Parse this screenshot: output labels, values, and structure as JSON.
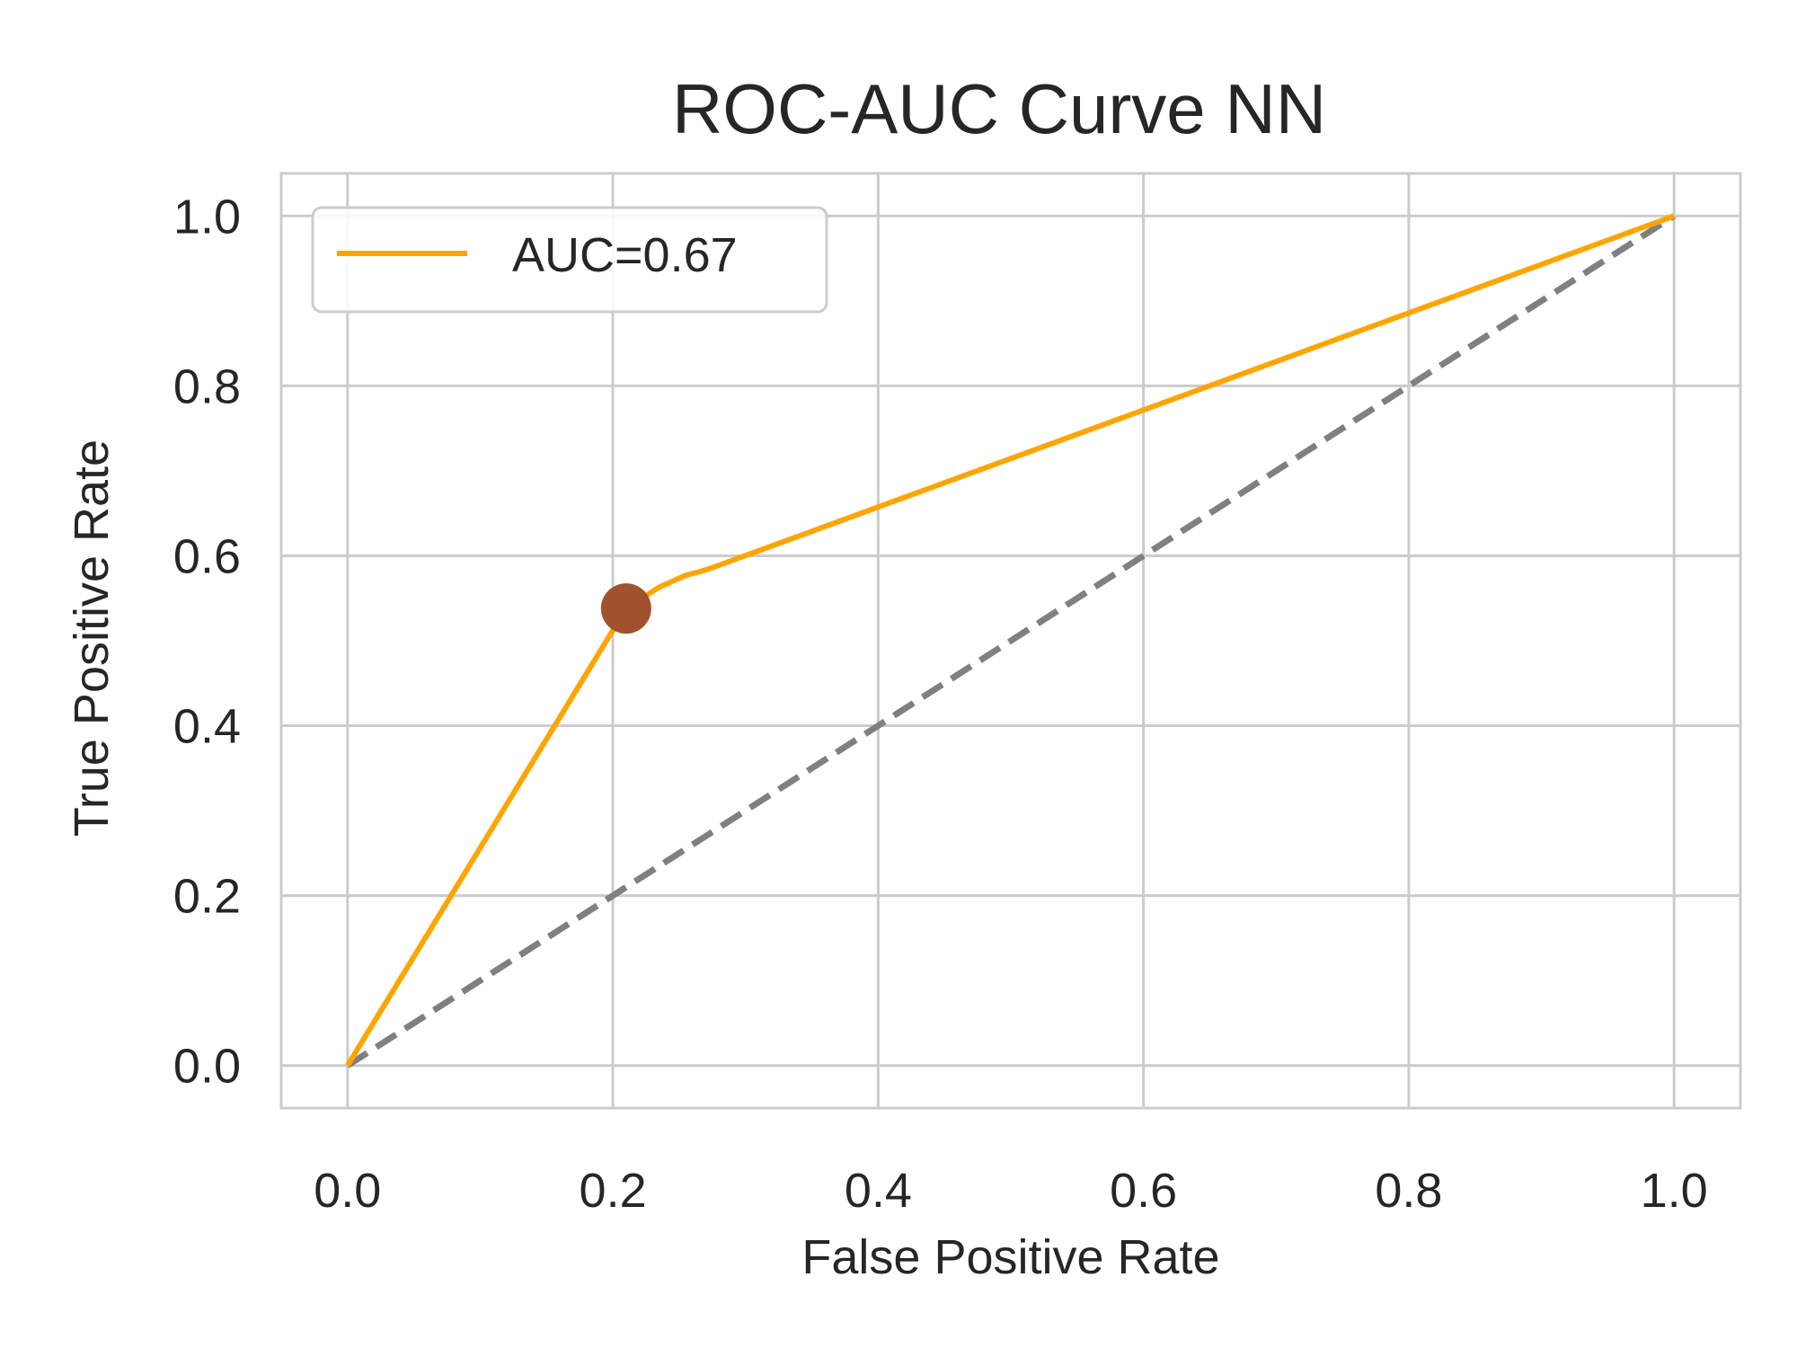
{
  "chart_data": {
    "type": "line",
    "title": "ROC-AUC Curve NN",
    "xlabel": "False Positive Rate",
    "ylabel": "True Positive Rate",
    "xlim": [
      -0.05,
      1.05
    ],
    "ylim": [
      -0.05,
      1.05
    ],
    "x_ticks": [
      0.0,
      0.2,
      0.4,
      0.6,
      0.8,
      1.0
    ],
    "y_ticks": [
      0.0,
      0.2,
      0.4,
      0.6,
      0.8,
      1.0
    ],
    "x_tick_labels": [
      "0.0",
      "0.2",
      "0.4",
      "0.6",
      "0.8",
      "1.0"
    ],
    "y_tick_labels": [
      "0.0",
      "0.2",
      "0.4",
      "0.6",
      "0.8",
      "1.0"
    ],
    "grid": true,
    "legend_position": "top-left",
    "series": [
      {
        "name": "AUC=0.67",
        "color": "#ffa500",
        "style": "solid",
        "x": [
          0.0,
          0.21,
          0.225,
          0.235,
          0.245,
          0.255,
          0.265,
          0.275,
          1.0
        ],
        "y": [
          0.0,
          0.538,
          0.553,
          0.563,
          0.57,
          0.577,
          0.581,
          0.586,
          1.0
        ]
      },
      {
        "name": "chance",
        "color": "#808080",
        "style": "dashed",
        "x": [
          0.0,
          1.0
        ],
        "y": [
          0.0,
          1.0
        ]
      }
    ],
    "marker": {
      "x": 0.21,
      "y": 0.538,
      "color": "#a0522d"
    }
  }
}
